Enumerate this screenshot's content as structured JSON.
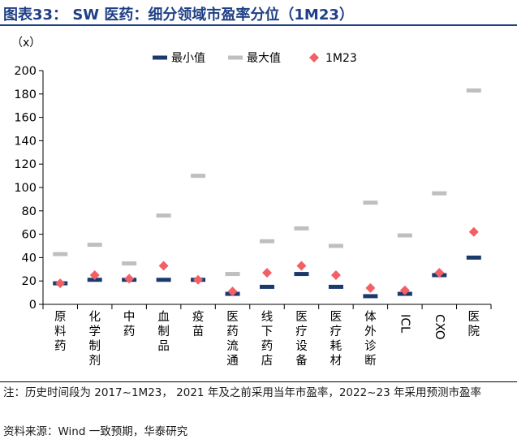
{
  "header": {
    "title": "图表33： SW 医药：细分领域市盈率分位（1M23）"
  },
  "footer": {
    "note": "注：历史时间段为 2017~1M23， 2021 年及之前采用当年市盈率，2022~23 年采用预测市盈率",
    "source": "资料来源：Wind 一致预期，华泰研究"
  },
  "chart_data": {
    "type": "scatter",
    "ylabel": "（x）",
    "ylim": [
      0,
      200
    ],
    "yticks": [
      0,
      20,
      40,
      60,
      80,
      100,
      120,
      140,
      160,
      180,
      200
    ],
    "grid": false,
    "legend_position": "top",
    "categories": [
      "原料药",
      "化学制剂",
      "中药",
      "血制品",
      "疫苗",
      "医药流通",
      "线下药店",
      "医疗设备",
      "医疗耗材",
      "体外诊断",
      "ICL",
      "CXO",
      "医院"
    ],
    "category_orientation": [
      "vertical",
      "vertical",
      "vertical",
      "vertical",
      "vertical",
      "vertical",
      "vertical",
      "vertical",
      "vertical",
      "vertical",
      "rotated",
      "rotated",
      "vertical"
    ],
    "series": [
      {
        "name": "最小值",
        "color": "#1a3a6e",
        "marker": "dash",
        "values": [
          18,
          21,
          21,
          21,
          21,
          9,
          15,
          26,
          15,
          7,
          9,
          25,
          40
        ]
      },
      {
        "name": "最大值",
        "color": "#bfbfbf",
        "marker": "dash",
        "values": [
          43,
          51,
          35,
          76,
          110,
          26,
          54,
          65,
          50,
          87,
          59,
          95,
          183
        ]
      },
      {
        "name": "1M23",
        "color": "#f26066",
        "marker": "diamond",
        "values": [
          18,
          25,
          22,
          33,
          21,
          11,
          27,
          33,
          25,
          14,
          12,
          27,
          62
        ]
      }
    ]
  }
}
